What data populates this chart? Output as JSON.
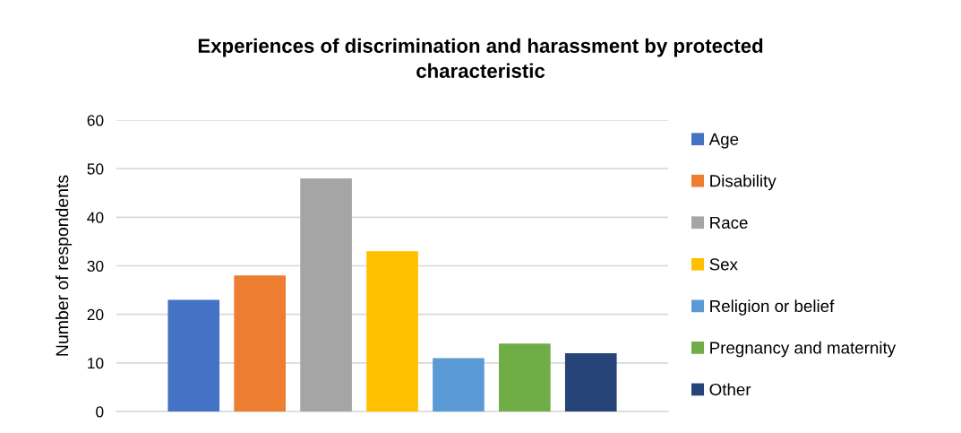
{
  "chart_data": {
    "type": "bar",
    "title": "Experiences of discrimination and harassment by protected characteristic",
    "ylabel": "Number of respondents",
    "categories": [
      null
    ],
    "series": [
      {
        "name": "Age",
        "color": "#4472c4",
        "values": [
          23
        ]
      },
      {
        "name": "Disability",
        "color": "#ed7d31",
        "values": [
          28
        ]
      },
      {
        "name": "Race",
        "color": "#a5a5a5",
        "values": [
          48
        ]
      },
      {
        "name": "Sex",
        "color": "#ffc000",
        "values": [
          33
        ]
      },
      {
        "name": "Religion or belief",
        "color": "#5b9bd5",
        "values": [
          11
        ]
      },
      {
        "name": "Pregnancy and maternity",
        "color": "#70ad47",
        "values": [
          14
        ]
      },
      {
        "name": "Other",
        "color": "#264478",
        "values": [
          12
        ]
      }
    ],
    "ylim": [
      0,
      60
    ],
    "yticks": [
      0,
      10,
      20,
      30,
      40,
      50,
      60
    ],
    "grid": "y",
    "legend": "right",
    "tick_labels": "y"
  }
}
